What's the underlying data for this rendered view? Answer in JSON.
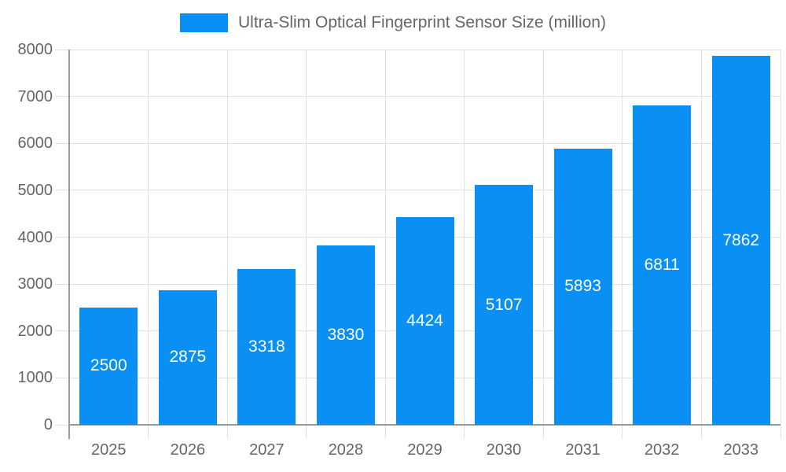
{
  "chart_data": {
    "type": "bar",
    "title": "Ultra-Slim Optical Fingerprint Sensor Size (million)",
    "categories": [
      "2025",
      "2026",
      "2027",
      "2028",
      "2029",
      "2030",
      "2031",
      "2032",
      "2033"
    ],
    "values": [
      2500,
      2875,
      3318,
      3830,
      4424,
      5107,
      5893,
      6811,
      7862
    ],
    "xlabel": "",
    "ylabel": "",
    "ylim": [
      0,
      8000
    ],
    "ytick_step": 1000,
    "grid": true,
    "legend_position": "top",
    "colors": {
      "bar": "#0A90F5",
      "bar_value_text": "#ffffff",
      "axis_text": "#666666",
      "gridline": "#e0e0e0",
      "axis_line": "#999999",
      "background": "#ffffff"
    }
  }
}
